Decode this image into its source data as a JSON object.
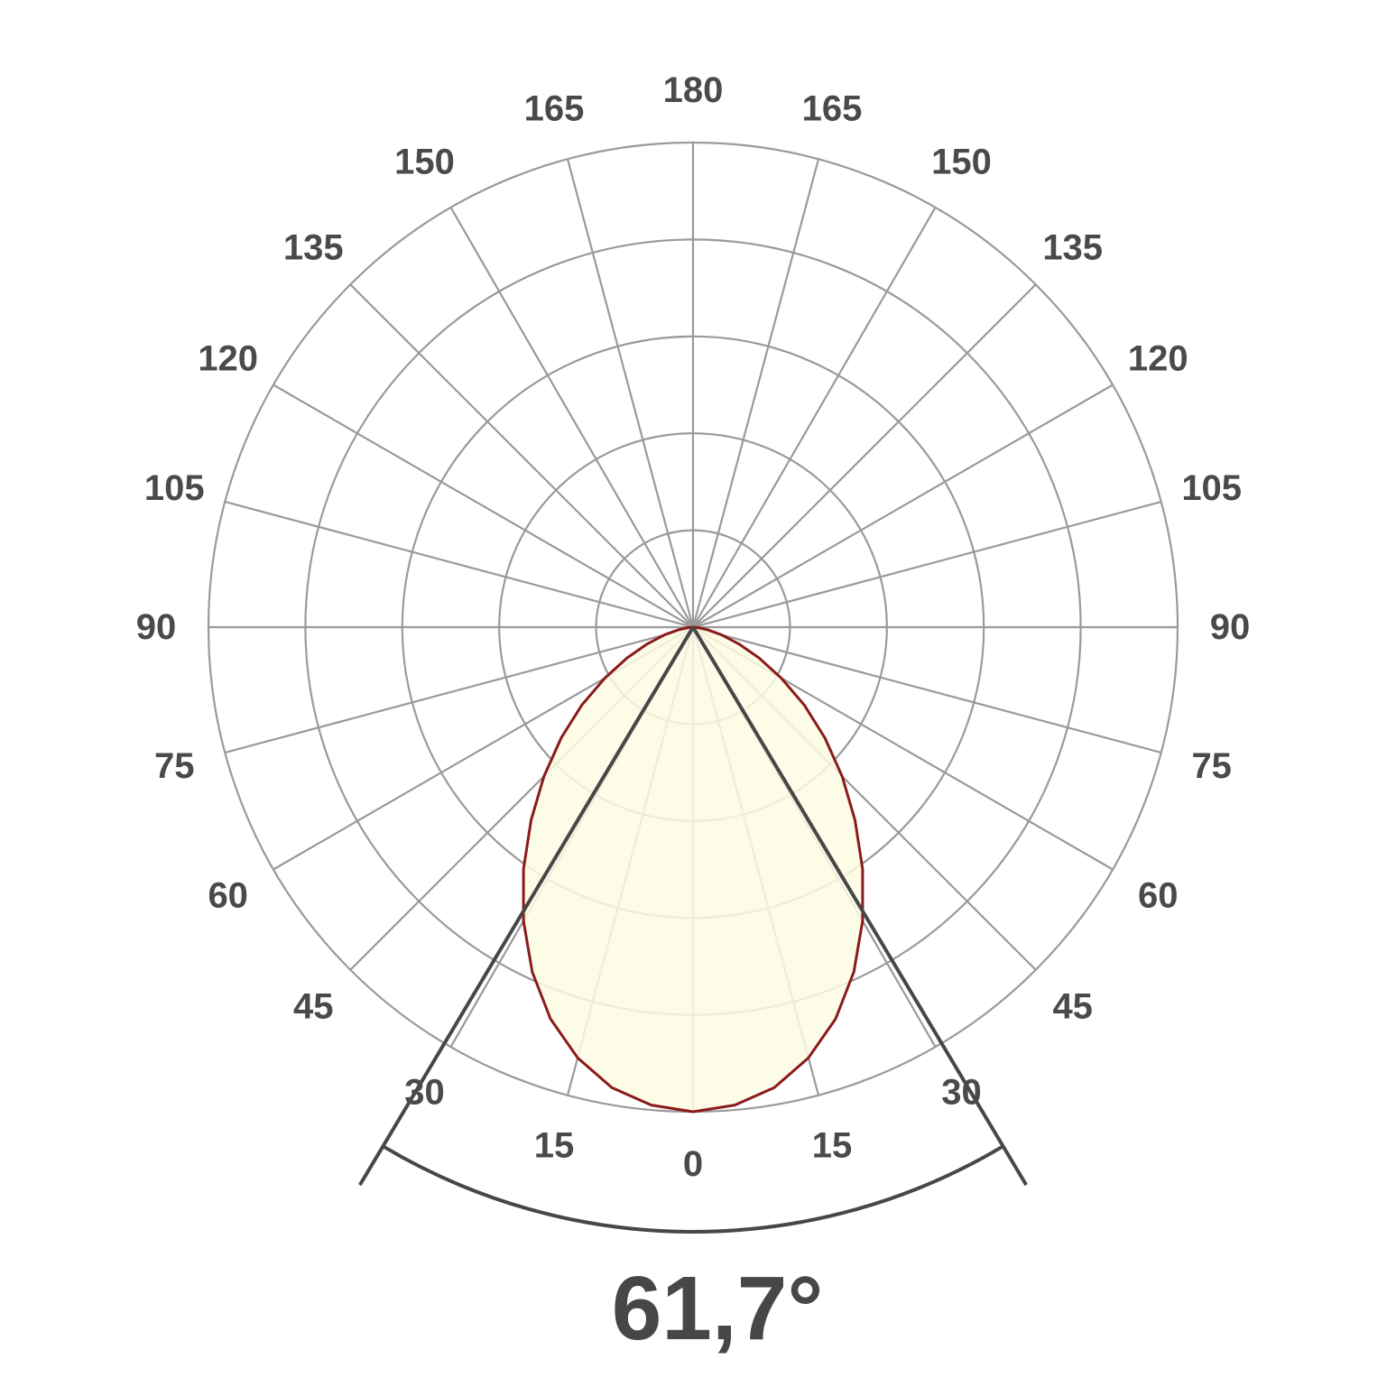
{
  "chart_data": {
    "type": "polar",
    "angle_unit": "deg",
    "angle_ticks": [
      0,
      15,
      30,
      45,
      60,
      75,
      90,
      105,
      120,
      135,
      150,
      165,
      180
    ],
    "radial_rings": 5,
    "grid": true,
    "beam_angle_value": 61.7,
    "beam_angle_label": "61,7°",
    "series": [
      {
        "angles": [
          0,
          5,
          10,
          15,
          20,
          25,
          30,
          35,
          40,
          45,
          50,
          55,
          60,
          65,
          70,
          75,
          80,
          85,
          90
        ],
        "values": [
          1.0,
          0.99,
          0.965,
          0.92,
          0.86,
          0.785,
          0.7,
          0.61,
          0.52,
          0.435,
          0.355,
          0.28,
          0.21,
          0.15,
          0.1,
          0.06,
          0.03,
          0.01,
          0.0
        ]
      }
    ],
    "colors": {
      "grid": "#9a9a9a",
      "curve": "#8b1a1a",
      "fill": "#fdfbe3",
      "beam_lines": "#474747",
      "labels": "#4a4a4a"
    }
  }
}
